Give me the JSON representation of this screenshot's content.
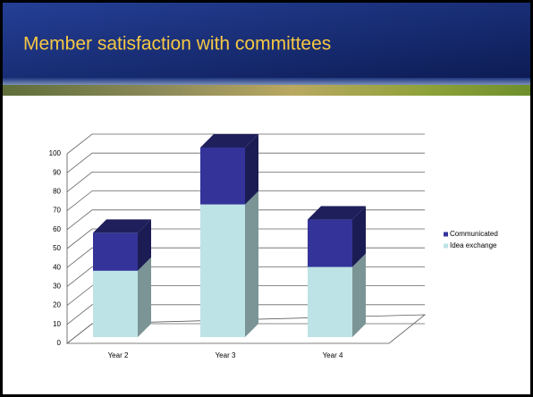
{
  "chart_data": {
    "type": "bar",
    "stacked": true,
    "title": "Member satisfaction with committees",
    "categories": [
      "Year 2",
      "Year 3",
      "Year 4"
    ],
    "series": [
      {
        "name": "Idea exchange",
        "color": "#bde3e6",
        "values": [
          35,
          70,
          37
        ]
      },
      {
        "name": "Communicated",
        "color": "#333399",
        "values": [
          20,
          30,
          25
        ]
      }
    ],
    "ylim": [
      0,
      100
    ],
    "yticks": [
      0,
      10,
      20,
      30,
      40,
      50,
      60,
      70,
      80,
      90,
      100
    ],
    "grid": true,
    "legend": "right"
  }
}
